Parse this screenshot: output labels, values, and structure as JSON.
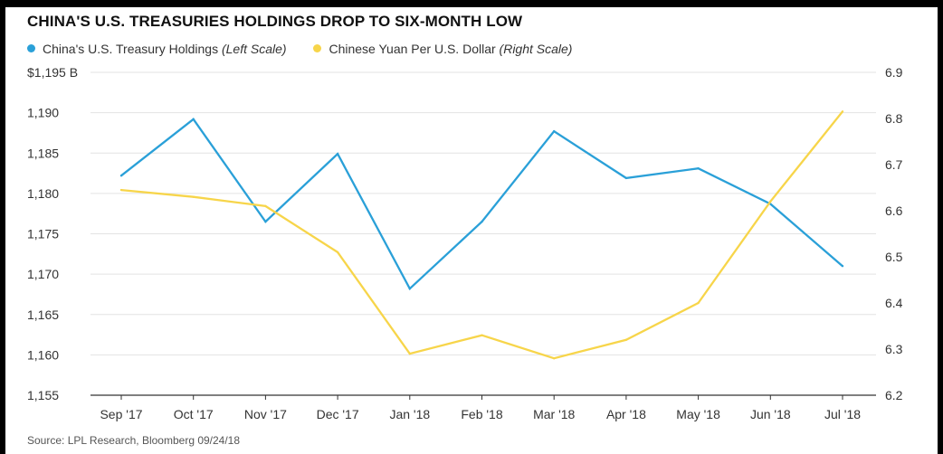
{
  "chart_data": {
    "type": "line",
    "title": "CHINA'S U.S. TREASURIES HOLDINGS DROP TO SIX-MONTH LOW",
    "categories": [
      "Sep '17",
      "Oct '17",
      "Nov '17",
      "Dec '17",
      "Jan '18",
      "Feb '18",
      "Mar '18",
      "Apr '18",
      "May '18",
      "Jun '18",
      "Jul '18"
    ],
    "series": [
      {
        "name": "China's U.S. Treasury Holdings",
        "scale_note": "(Left Scale)",
        "axis": "left",
        "color": "#2aa0d8",
        "values": [
          1182.2,
          1189.2,
          1176.5,
          1184.9,
          1168.2,
          1176.5,
          1187.7,
          1181.9,
          1183.1,
          1178.7,
          1171.0
        ]
      },
      {
        "name": "Chinese Yuan Per U.S. Dollar",
        "scale_note": "(Right Scale)",
        "axis": "right",
        "color": "#f7d54a",
        "values": [
          6.645,
          6.63,
          6.61,
          6.51,
          6.29,
          6.33,
          6.28,
          6.32,
          6.4,
          6.62,
          6.815
        ]
      }
    ],
    "y_left": {
      "ylim": [
        1155,
        1195
      ],
      "ticks": [
        1155,
        1160,
        1165,
        1170,
        1175,
        1180,
        1185,
        1190,
        1195
      ],
      "tick_labels": [
        "1,155",
        "1,160",
        "1,165",
        "1,170",
        "1,175",
        "1,180",
        "1,185",
        "1,190",
        "$1,195 B"
      ]
    },
    "y_right": {
      "ylim": [
        6.2,
        6.9
      ],
      "ticks": [
        6.2,
        6.3,
        6.4,
        6.5,
        6.6,
        6.7,
        6.8,
        6.9
      ],
      "tick_labels": [
        "6.2",
        "6.3",
        "6.4",
        "6.5",
        "6.6",
        "6.7",
        "6.8",
        "6.9"
      ]
    },
    "grid": true,
    "legend_position": "top-left",
    "source": "Source: LPL Research, Bloomberg  09/24/18"
  }
}
